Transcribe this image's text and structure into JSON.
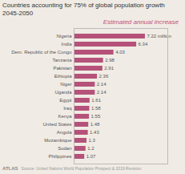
{
  "chart_data": {
    "type": "bar",
    "orientation": "horizontal",
    "title": "Countries accounting for 75% of global population growth 2045-2050",
    "subtitle": "Estimated annual increase",
    "annotations": [
      "ATLAS",
      "Source: United Nations World Population Prospect & 2019 Revision"
    ],
    "categories": [
      "Nigeria",
      "India",
      "Dem. Republic of the Congo",
      "Tanzania",
      "Pakistan",
      "Ethiopia",
      "Niger",
      "Uganda",
      "Egypt",
      "Iraq",
      "Kenya",
      "United States",
      "Angola",
      "Mozambique",
      "Sudan",
      "Philippines"
    ],
    "values": [
      7.22,
      6.34,
      4.03,
      2.98,
      2.91,
      2.36,
      2.14,
      2.14,
      1.61,
      1.58,
      1.55,
      1.48,
      1.43,
      1.3,
      1.2,
      1.07
    ],
    "value_labels": [
      "7.22 million",
      "6.34",
      "4.03",
      "2.98",
      "2.91",
      "2.36",
      "2.14",
      "2.14",
      "1.61",
      "1.58",
      "1.55",
      "1.48",
      "1.43",
      "1.3",
      "1.2",
      "1.07"
    ],
    "data_labels": true,
    "color": "#b5527a",
    "xlim": [
      0,
      9.5
    ],
    "xticks": [],
    "tick_labels": "y",
    "grid": false
  }
}
